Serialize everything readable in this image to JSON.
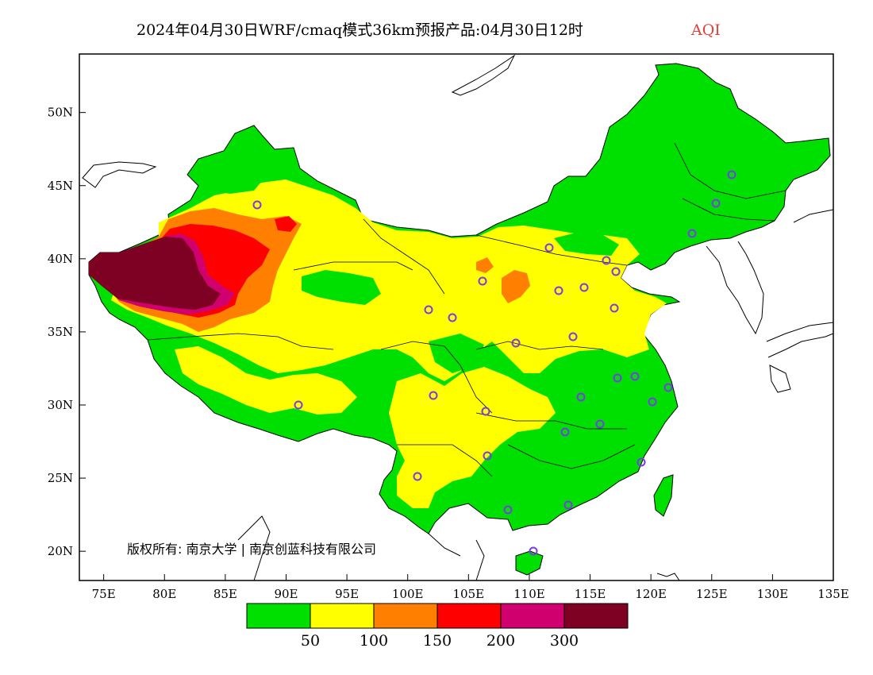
{
  "title": {
    "main": "2024年04月30日WRF/cmaq模式36km预报产品:04月30日12时",
    "variable": "AQI"
  },
  "map": {
    "lon_range": [
      73,
      135
    ],
    "lat_range": [
      18,
      54
    ],
    "lon_ticks": [
      "75E",
      "80E",
      "85E",
      "90E",
      "95E",
      "100E",
      "105E",
      "110E",
      "115E",
      "120E",
      "125E",
      "130E",
      "135E"
    ],
    "lat_ticks": [
      "20N",
      "25N",
      "30N",
      "35N",
      "40N",
      "45N",
      "50N"
    ],
    "copyright": "版权所有: 南京大学 | 南京创蓝科技有限公司"
  },
  "legend": {
    "colors": [
      "#00e000",
      "#ffff00",
      "#ff8000",
      "#ff0000",
      "#d0006e",
      "#7e0023"
    ],
    "labels": [
      "50",
      "100",
      "150",
      "200",
      "300"
    ]
  },
  "colors": {
    "land_green": "#00e000",
    "ocean": "#ffffff",
    "border": "#000000",
    "city_marker": "#7c3aed"
  }
}
